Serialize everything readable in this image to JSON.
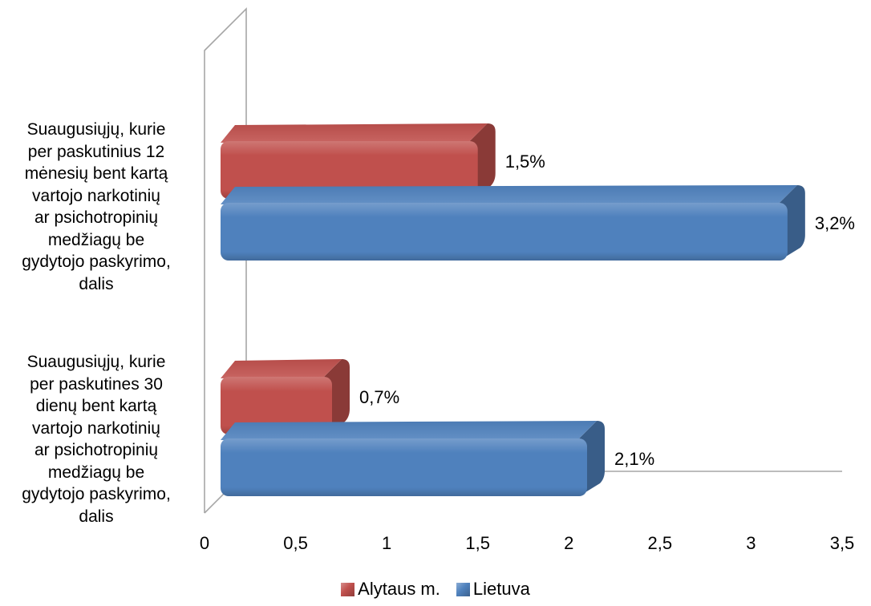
{
  "chart_data": {
    "type": "bar",
    "orientation": "horizontal",
    "categories": [
      "Suaugusiųjų, kurie per paskutinius 12 mėnesių bent kartą vartojo narkotinių ar psichotropinių medžiagų be gydytojo paskyrimo, dalis",
      "Suaugusiųjų, kurie per paskutines 30 dienų bent kartą vartojo narkotinių ar psichotropinių medžiagų be gydytojo paskyrimo, dalis"
    ],
    "category_lines": [
      [
        "Suaugusiųjų, kurie",
        "per paskutinius 12",
        "mėnesių bent kartą",
        "vartojo narkotinių",
        "ar psichotropinių",
        "medžiagų be",
        "gydytojo paskyrimo,",
        "dalis"
      ],
      [
        "Suaugusiųjų, kurie",
        "per paskutines 30",
        "dienų bent kartą",
        "vartojo narkotinių",
        "ar psichotropinių",
        "medžiagų be",
        "gydytojo paskyrimo,",
        "dalis"
      ]
    ],
    "series": [
      {
        "name": "Alytaus m.",
        "color": "#c0504d",
        "values": [
          1.5,
          0.7
        ],
        "labels": [
          "1,5%",
          "0,7%"
        ]
      },
      {
        "name": "Lietuva",
        "color": "#4f81bd",
        "values": [
          3.2,
          2.1
        ],
        "labels": [
          "3,2%",
          "2,1%"
        ]
      }
    ],
    "x_ticks": [
      "0",
      "0,5",
      "1",
      "1,5",
      "2",
      "2,5",
      "3",
      "3,5"
    ],
    "x_tick_values": [
      0,
      0.5,
      1,
      1.5,
      2,
      2.5,
      3,
      3.5
    ],
    "xlim": [
      0,
      3.5
    ],
    "grid": false,
    "legend_position": "bottom",
    "style": "3d-clustered-bar"
  }
}
